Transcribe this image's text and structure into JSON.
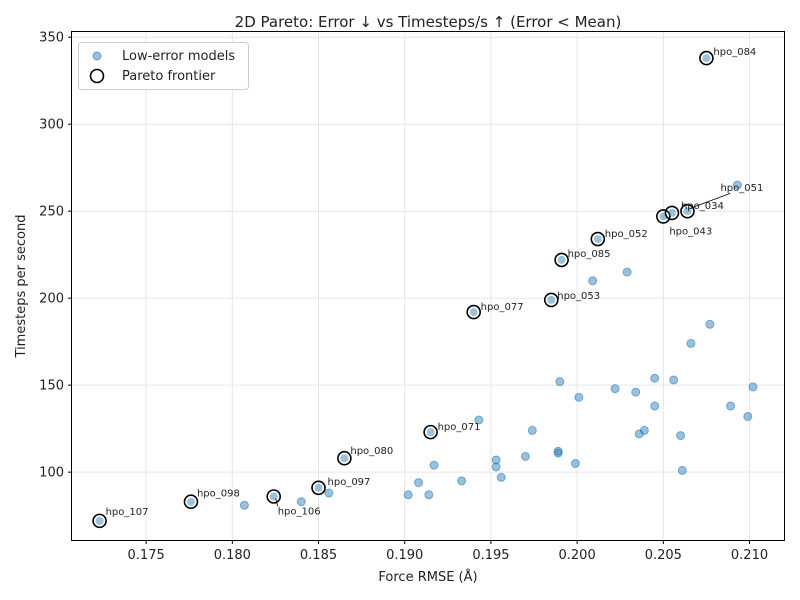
{
  "chart_data": {
    "type": "scatter",
    "title": "2D Pareto: Error ↓ vs Timesteps/s ↑ (Error < Mean)",
    "xlabel": "Force RMSE (Å)",
    "ylabel": "Timesteps per second",
    "xlim": [
      0.1707,
      0.212
    ],
    "ylim": [
      61.0,
      353.0
    ],
    "xticks": [
      0.175,
      0.18,
      0.185,
      0.19,
      0.195,
      0.2,
      0.205,
      0.21
    ],
    "xtick_labels": [
      "0.175",
      "0.180",
      "0.185",
      "0.190",
      "0.195",
      "0.200",
      "0.205",
      "0.210"
    ],
    "yticks": [
      100,
      150,
      200,
      250,
      300,
      350
    ],
    "ytick_labels": [
      "100",
      "150",
      "200",
      "250",
      "300",
      "350"
    ],
    "grid": true,
    "legend_position": "top-left",
    "colors": {
      "points": "#1f77b4",
      "frontier_edge": "#000000",
      "grid": "#e6e6e6",
      "axis": "#000000"
    },
    "series": [
      {
        "name": "Low-error models",
        "points": [
          [
            0.1807,
            81
          ],
          [
            0.184,
            83
          ],
          [
            0.1856,
            88
          ],
          [
            0.1902,
            87
          ],
          [
            0.1908,
            94
          ],
          [
            0.1914,
            87
          ],
          [
            0.1917,
            104
          ],
          [
            0.1933,
            95
          ],
          [
            0.1943,
            130
          ],
          [
            0.1953,
            107
          ],
          [
            0.1953,
            103
          ],
          [
            0.1956,
            97
          ],
          [
            0.197,
            109
          ],
          [
            0.1974,
            124
          ],
          [
            0.1989,
            111
          ],
          [
            0.1989,
            112
          ],
          [
            0.199,
            152
          ],
          [
            0.1999,
            105
          ],
          [
            0.2001,
            143
          ],
          [
            0.2009,
            210
          ],
          [
            0.2022,
            148
          ],
          [
            0.2029,
            215
          ],
          [
            0.2034,
            146
          ],
          [
            0.2036,
            122
          ],
          [
            0.2039,
            124
          ],
          [
            0.2045,
            138
          ],
          [
            0.2045,
            154
          ],
          [
            0.2056,
            153
          ],
          [
            0.206,
            121
          ],
          [
            0.2061,
            101
          ],
          [
            0.2066,
            174
          ],
          [
            0.2077,
            185
          ],
          [
            0.2089,
            138
          ],
          [
            0.2093,
            265
          ],
          [
            0.2099,
            132
          ],
          [
            0.2102,
            149
          ]
        ]
      },
      {
        "name": "Pareto frontier",
        "points": [
          {
            "x": 0.1723,
            "y": 72,
            "label": "hpo_107"
          },
          {
            "x": 0.1776,
            "y": 83,
            "label": "hpo_098"
          },
          {
            "x": 0.1824,
            "y": 86,
            "label": "hpo_106"
          },
          {
            "x": 0.185,
            "y": 91,
            "label": "hpo_097"
          },
          {
            "x": 0.1865,
            "y": 108,
            "label": "hpo_080"
          },
          {
            "x": 0.1915,
            "y": 123,
            "label": "hpo_071"
          },
          {
            "x": 0.194,
            "y": 192,
            "label": "hpo_077"
          },
          {
            "x": 0.1985,
            "y": 199,
            "label": "hpo_053"
          },
          {
            "x": 0.1991,
            "y": 222,
            "label": "hpo_085"
          },
          {
            "x": 0.2012,
            "y": 234,
            "label": "hpo_052"
          },
          {
            "x": 0.205,
            "y": 247,
            "label": "hpo_043"
          },
          {
            "x": 0.2055,
            "y": 249,
            "label": "hpo_034"
          },
          {
            "x": 0.2064,
            "y": 250,
            "label": "hpo_051"
          },
          {
            "x": 0.2075,
            "y": 338,
            "label": "hpo_084"
          }
        ]
      }
    ]
  }
}
